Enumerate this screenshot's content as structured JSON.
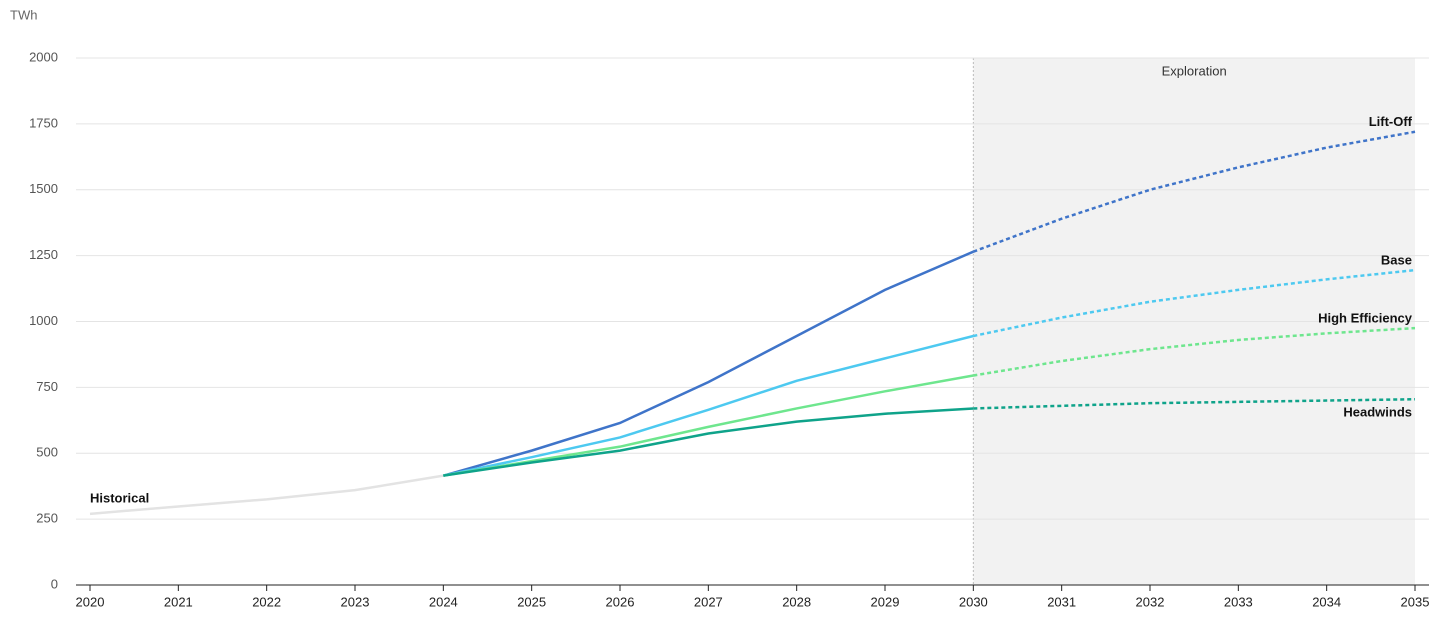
{
  "chart_data": {
    "type": "line",
    "y_label": "TWh",
    "x": [
      2020,
      2021,
      2022,
      2023,
      2024,
      2025,
      2026,
      2027,
      2028,
      2029,
      2030,
      2031,
      2032,
      2033,
      2034,
      2035
    ],
    "xlim": [
      2020,
      2035
    ],
    "xticks": [
      2020,
      2021,
      2022,
      2023,
      2024,
      2025,
      2026,
      2027,
      2028,
      2029,
      2030,
      2031,
      2032,
      2033,
      2034,
      2035
    ],
    "ylim": [
      0,
      2000
    ],
    "yticks": [
      0,
      250,
      500,
      750,
      1000,
      1250,
      1500,
      1750,
      2000
    ],
    "grid": true,
    "shaded_region": {
      "label": "Exploration",
      "xlim": [
        2030,
        2035
      ],
      "color": "#f2f2f2"
    },
    "series": [
      {
        "name": "Historical",
        "color": "#e3e3e3",
        "values": [
          270,
          298,
          325,
          360,
          415,
          null,
          null,
          null,
          null,
          null,
          null,
          null,
          null,
          null,
          null,
          null
        ]
      },
      {
        "name": "Lift-Off",
        "color": "#3f74c9",
        "values": [
          null,
          null,
          null,
          null,
          415,
          510,
          615,
          770,
          945,
          1120,
          1265,
          1390,
          1500,
          1585,
          1660,
          1720
        ]
      },
      {
        "name": "Base",
        "color": "#4dc9f0",
        "values": [
          null,
          null,
          null,
          null,
          415,
          485,
          560,
          665,
          775,
          860,
          945,
          1015,
          1075,
          1120,
          1160,
          1195
        ]
      },
      {
        "name": "High Efficiency",
        "color": "#6ee68e",
        "values": [
          null,
          null,
          null,
          null,
          415,
          470,
          525,
          600,
          670,
          735,
          795,
          850,
          895,
          930,
          955,
          975
        ]
      },
      {
        "name": "Headwinds",
        "color": "#0fa38a",
        "values": [
          null,
          null,
          null,
          null,
          415,
          465,
          510,
          575,
          620,
          650,
          670,
          680,
          690,
          695,
          700,
          705
        ]
      }
    ]
  }
}
